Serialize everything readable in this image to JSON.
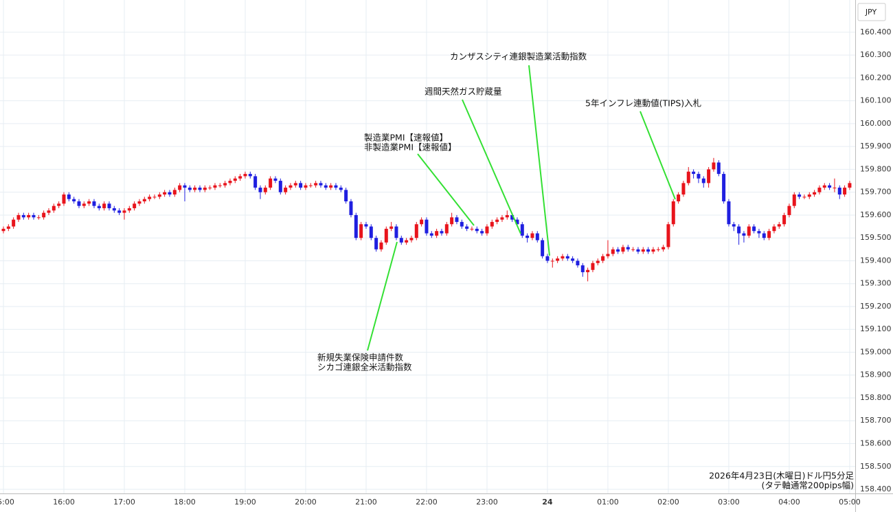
{
  "chart_data": {
    "type": "candlestick",
    "currency_label": "JPY",
    "caption": [
      "2026年4月23日(木曜日)ドル円5分足",
      "(タテ軸通常200pips幅)"
    ],
    "annotations": [
      [
        "新規失業保険申請件数",
        "シカゴ連銀全米活動指数"
      ],
      [
        "製造業PMI【速報値】",
        "非製造業PMI【速報値】"
      ],
      [
        "週間天然ガス貯蔵量"
      ],
      [
        "カンザスシティ連銀製造業活動指数"
      ],
      [
        "5年インフレ連動値(TIPS)入札"
      ]
    ],
    "up_color": "#e8141c",
    "down_color": "#1f1fe0",
    "annotation_color": "#33e033",
    "grid": true,
    "ylim": [
      158.382,
      160.541
    ],
    "xlim": [
      -0.68,
      169.1
    ],
    "yticks": [
      {
        "value": 158.4,
        "label": "158.400"
      },
      {
        "value": 158.5,
        "label": "158.500"
      },
      {
        "value": 158.6,
        "label": "158.600"
      },
      {
        "value": 158.7,
        "label": "158.700"
      },
      {
        "value": 158.8,
        "label": "158.800"
      },
      {
        "value": 158.9,
        "label": "158.900"
      },
      {
        "value": 159.0,
        "label": "159.000"
      },
      {
        "value": 159.1,
        "label": "159.100"
      },
      {
        "value": 159.2,
        "label": "159.200"
      },
      {
        "value": 159.3,
        "label": "159.300"
      },
      {
        "value": 159.4,
        "label": "159.400"
      },
      {
        "value": 159.5,
        "label": "159.500"
      },
      {
        "value": 159.6,
        "label": "159.600"
      },
      {
        "value": 159.7,
        "label": "159.700"
      },
      {
        "value": 159.8,
        "label": "159.800"
      },
      {
        "value": 159.9,
        "label": "159.900"
      },
      {
        "value": 160.0,
        "label": "160.000"
      },
      {
        "value": 160.1,
        "label": "160.100"
      },
      {
        "value": 160.2,
        "label": "160.200"
      },
      {
        "value": 160.3,
        "label": "160.300"
      },
      {
        "value": 160.4,
        "label": "160.400"
      }
    ],
    "xticks": [
      {
        "value": 0,
        "label": "15:00"
      },
      {
        "value": 12,
        "label": "16:00"
      },
      {
        "value": 24,
        "label": "17:00"
      },
      {
        "value": 36,
        "label": "18:00"
      },
      {
        "value": 48,
        "label": "19:00"
      },
      {
        "value": 60,
        "label": "20:00"
      },
      {
        "value": 72,
        "label": "21:00"
      },
      {
        "value": 84,
        "label": "22:00"
      },
      {
        "value": 96,
        "label": "23:00"
      },
      {
        "value": 108,
        "label": "24"
      },
      {
        "value": 120,
        "label": "01:00"
      },
      {
        "value": 132,
        "label": "02:00"
      },
      {
        "value": 144,
        "label": "03:00"
      },
      {
        "value": 156,
        "label": "04:00"
      },
      {
        "value": 168,
        "label": "05:00"
      }
    ],
    "open": [
      159.53,
      159.54,
      159.55,
      159.58,
      159.6,
      159.59,
      159.6,
      159.59,
      159.59,
      159.61,
      159.62,
      159.64,
      159.65,
      159.69,
      159.67,
      159.66,
      159.64,
      159.65,
      159.66,
      159.64,
      159.63,
      159.65,
      159.63,
      159.62,
      159.61,
      159.62,
      159.63,
      159.65,
      159.66,
      159.67,
      159.68,
      159.68,
      159.69,
      159.7,
      159.69,
      159.71,
      159.73,
      159.72,
      159.71,
      159.72,
      159.71,
      159.72,
      159.72,
      159.73,
      159.73,
      159.74,
      159.75,
      159.76,
      159.77,
      159.78,
      159.77,
      159.72,
      159.7,
      159.72,
      159.76,
      159.75,
      159.7,
      159.72,
      159.73,
      159.74,
      159.72,
      159.73,
      159.73,
      159.74,
      159.73,
      159.72,
      159.73,
      159.72,
      159.71,
      159.66,
      159.6,
      159.5,
      159.56,
      159.55,
      159.5,
      159.45,
      159.48,
      159.54,
      159.55,
      159.5,
      159.48,
      159.49,
      159.5,
      159.56,
      159.58,
      159.52,
      159.51,
      159.53,
      159.52,
      159.56,
      159.59,
      159.57,
      159.55,
      159.54,
      159.54,
      159.53,
      159.52,
      159.55,
      159.57,
      159.58,
      159.59,
      159.6,
      159.58,
      159.56,
      159.51,
      159.5,
      159.52,
      159.49,
      159.42,
      159.4,
      159.4,
      159.41,
      159.42,
      159.41,
      159.4,
      159.38,
      159.35,
      159.36,
      159.39,
      159.4,
      159.42,
      159.43,
      159.45,
      159.44,
      159.46,
      159.45,
      159.45,
      159.44,
      159.45,
      159.44,
      159.45,
      159.45,
      159.46,
      159.56,
      159.66,
      159.69,
      159.74,
      159.79,
      159.78,
      159.76,
      159.74,
      159.8,
      159.83,
      159.78,
      159.66,
      159.56,
      159.55,
      159.52,
      159.51,
      159.55,
      159.53,
      159.52,
      159.5,
      159.53,
      159.55,
      159.56,
      159.6,
      159.64,
      159.69,
      159.68,
      159.68,
      159.69,
      159.7,
      159.72,
      159.73,
      159.72,
      159.72,
      159.69,
      159.72
    ],
    "high": [
      159.55,
      159.56,
      159.59,
      159.61,
      159.61,
      159.61,
      159.61,
      159.6,
      159.62,
      159.63,
      159.65,
      159.66,
      159.7,
      159.7,
      159.68,
      159.67,
      159.66,
      159.67,
      159.67,
      159.65,
      159.66,
      159.66,
      159.64,
      159.63,
      159.63,
      159.64,
      159.66,
      159.67,
      159.68,
      159.69,
      159.69,
      159.7,
      159.71,
      159.71,
      159.72,
      159.74,
      159.74,
      159.73,
      159.73,
      159.73,
      159.73,
      159.73,
      159.74,
      159.74,
      159.75,
      159.76,
      159.77,
      159.78,
      159.79,
      159.79,
      159.78,
      159.73,
      159.73,
      159.77,
      159.77,
      159.76,
      159.73,
      159.74,
      159.75,
      159.75,
      159.74,
      159.74,
      159.75,
      159.75,
      159.74,
      159.74,
      159.74,
      159.73,
      159.72,
      159.67,
      159.61,
      159.57,
      159.57,
      159.56,
      159.51,
      159.49,
      159.55,
      159.57,
      159.56,
      159.51,
      159.5,
      159.51,
      159.57,
      159.59,
      159.59,
      159.53,
      159.54,
      159.54,
      159.57,
      159.61,
      159.6,
      159.58,
      159.56,
      159.55,
      159.55,
      159.54,
      159.56,
      159.58,
      159.59,
      159.6,
      159.62,
      159.61,
      159.59,
      159.57,
      159.52,
      159.53,
      159.53,
      159.5,
      159.43,
      159.41,
      159.42,
      159.43,
      159.43,
      159.42,
      159.41,
      159.39,
      159.37,
      159.4,
      159.41,
      159.43,
      159.49,
      159.46,
      159.46,
      159.47,
      159.47,
      159.46,
      159.46,
      159.46,
      159.46,
      159.46,
      159.46,
      159.47,
      159.57,
      159.67,
      159.7,
      159.75,
      159.81,
      159.8,
      159.79,
      159.77,
      159.81,
      159.85,
      159.84,
      159.79,
      159.67,
      159.57,
      159.56,
      159.53,
      159.56,
      159.56,
      159.54,
      159.53,
      159.54,
      159.56,
      159.57,
      159.61,
      159.65,
      159.7,
      159.7,
      159.69,
      159.7,
      159.71,
      159.73,
      159.74,
      159.74,
      159.76,
      159.73,
      159.73,
      159.75
    ],
    "low": [
      159.52,
      159.53,
      159.54,
      159.57,
      159.58,
      159.58,
      159.58,
      159.58,
      159.58,
      159.6,
      159.61,
      159.63,
      159.64,
      159.66,
      159.65,
      159.63,
      159.63,
      159.64,
      159.63,
      159.62,
      159.62,
      159.62,
      159.61,
      159.6,
      159.58,
      159.61,
      159.62,
      159.64,
      159.65,
      159.66,
      159.67,
      159.67,
      159.68,
      159.68,
      159.68,
      159.7,
      159.66,
      159.7,
      159.7,
      159.7,
      159.7,
      159.71,
      159.71,
      159.72,
      159.72,
      159.73,
      159.74,
      159.75,
      159.76,
      159.76,
      159.71,
      159.67,
      159.69,
      159.71,
      159.74,
      159.69,
      159.69,
      159.71,
      159.72,
      159.71,
      159.71,
      159.72,
      159.72,
      159.72,
      159.71,
      159.71,
      159.71,
      159.7,
      159.65,
      159.59,
      159.49,
      159.49,
      159.54,
      159.49,
      159.44,
      159.44,
      159.47,
      159.53,
      159.49,
      159.47,
      159.47,
      159.48,
      159.49,
      159.55,
      159.51,
      159.5,
      159.5,
      159.51,
      159.51,
      159.55,
      159.56,
      159.54,
      159.53,
      159.53,
      159.52,
      159.51,
      159.51,
      159.54,
      159.56,
      159.57,
      159.58,
      159.57,
      159.55,
      159.5,
      159.48,
      159.49,
      159.48,
      159.41,
      159.39,
      159.37,
      159.39,
      159.4,
      159.4,
      159.39,
      159.37,
      159.33,
      159.31,
      159.35,
      159.38,
      159.39,
      159.41,
      159.42,
      159.43,
      159.43,
      159.44,
      159.44,
      159.43,
      159.43,
      159.43,
      159.43,
      159.44,
      159.44,
      159.45,
      159.55,
      159.65,
      159.68,
      159.73,
      159.76,
      159.74,
      159.72,
      159.72,
      159.79,
      159.77,
      159.65,
      159.55,
      159.53,
      159.47,
      159.48,
      159.5,
      159.52,
      159.5,
      159.49,
      159.49,
      159.52,
      159.54,
      159.55,
      159.59,
      159.63,
      159.67,
      159.67,
      159.67,
      159.68,
      159.69,
      159.71,
      159.71,
      159.7,
      159.67,
      159.68,
      159.71
    ],
    "close": [
      159.54,
      159.55,
      159.58,
      159.6,
      159.59,
      159.6,
      159.59,
      159.59,
      159.61,
      159.62,
      159.64,
      159.65,
      159.69,
      159.67,
      159.66,
      159.64,
      159.65,
      159.66,
      159.64,
      159.63,
      159.65,
      159.63,
      159.62,
      159.61,
      159.62,
      159.63,
      159.65,
      159.66,
      159.67,
      159.68,
      159.68,
      159.69,
      159.7,
      159.69,
      159.71,
      159.73,
      159.72,
      159.71,
      159.72,
      159.71,
      159.72,
      159.72,
      159.73,
      159.73,
      159.74,
      159.75,
      159.76,
      159.77,
      159.78,
      159.77,
      159.72,
      159.7,
      159.72,
      159.76,
      159.75,
      159.7,
      159.72,
      159.73,
      159.74,
      159.72,
      159.73,
      159.73,
      159.74,
      159.73,
      159.72,
      159.73,
      159.72,
      159.71,
      159.66,
      159.6,
      159.5,
      159.56,
      159.55,
      159.5,
      159.45,
      159.48,
      159.54,
      159.55,
      159.5,
      159.48,
      159.49,
      159.5,
      159.56,
      159.58,
      159.52,
      159.51,
      159.53,
      159.52,
      159.56,
      159.59,
      159.57,
      159.55,
      159.54,
      159.54,
      159.53,
      159.52,
      159.55,
      159.57,
      159.58,
      159.59,
      159.6,
      159.58,
      159.56,
      159.51,
      159.5,
      159.52,
      159.49,
      159.42,
      159.4,
      159.4,
      159.41,
      159.42,
      159.41,
      159.4,
      159.38,
      159.35,
      159.36,
      159.39,
      159.4,
      159.42,
      159.43,
      159.45,
      159.44,
      159.46,
      159.45,
      159.45,
      159.44,
      159.45,
      159.44,
      159.45,
      159.45,
      159.46,
      159.56,
      159.66,
      159.69,
      159.74,
      159.79,
      159.78,
      159.76,
      159.74,
      159.8,
      159.83,
      159.78,
      159.66,
      159.56,
      159.55,
      159.52,
      159.51,
      159.55,
      159.53,
      159.52,
      159.5,
      159.53,
      159.55,
      159.56,
      159.6,
      159.64,
      159.69,
      159.68,
      159.68,
      159.69,
      159.7,
      159.72,
      159.73,
      159.72,
      159.72,
      159.69,
      159.72,
      159.74
    ]
  }
}
